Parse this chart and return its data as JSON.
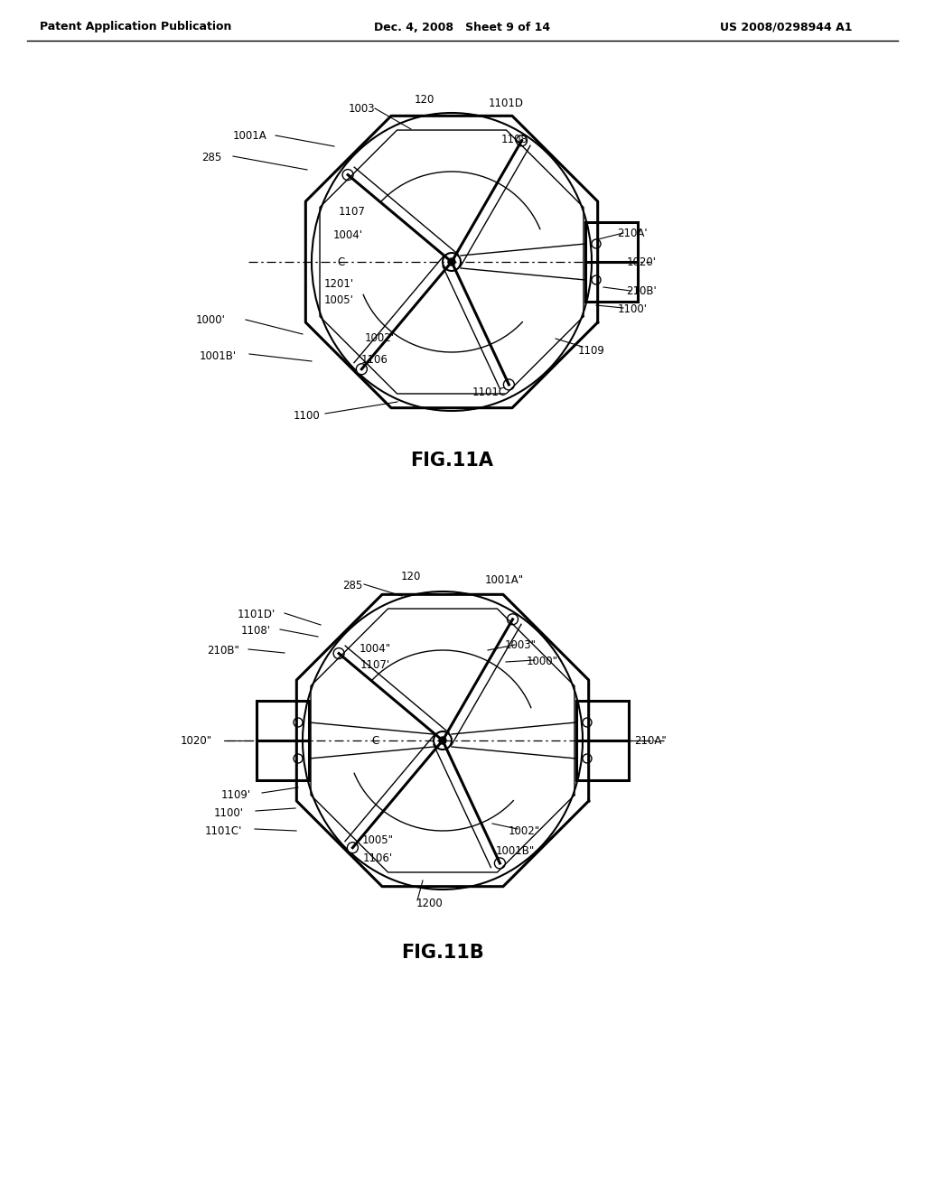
{
  "bg_color": "#ffffff",
  "line_color": "#000000",
  "header_left": "Patent Application Publication",
  "header_center": "Dec. 4, 2008   Sheet 9 of 14",
  "header_right": "US 2008/0298944 A1",
  "fig11a_label": "FIG.11A",
  "fig11b_label": "FIG.11B"
}
